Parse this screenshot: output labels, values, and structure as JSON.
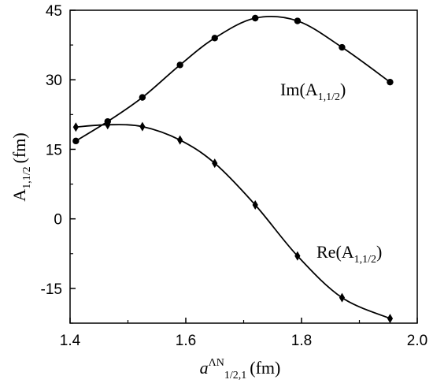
{
  "chart_data": {
    "type": "line",
    "xlabel": {
      "base": "a",
      "sup": "ΛN",
      "sub": "1/2,1",
      "unit": "(fm)"
    },
    "ylabel": {
      "base": "A",
      "sub": "1,1/2",
      "unit": "(fm)"
    },
    "xlim": [
      1.4,
      2.0
    ],
    "ylim": [
      -22.5,
      45
    ],
    "xticks": [
      1.4,
      1.6,
      1.8,
      2.0
    ],
    "xtick_labels": [
      "1.4",
      "1.6",
      "1.8",
      "2.0"
    ],
    "yticks": [
      -15,
      0,
      15,
      30,
      45
    ],
    "ytick_labels": [
      "-15",
      "0",
      "15",
      "30",
      "45"
    ],
    "grid": false,
    "legend": "none",
    "series": [
      {
        "key": "im",
        "label": {
          "base": "Im(A",
          "sub": "1,1/2",
          "tail": ")"
        },
        "marker": "circle",
        "color": "#000000",
        "x": [
          1.41,
          1.465,
          1.525,
          1.59,
          1.65,
          1.72,
          1.793,
          1.87,
          1.953
        ],
        "y": [
          16.8,
          21.0,
          26.2,
          33.2,
          39.0,
          43.3,
          42.7,
          37.0,
          29.5
        ]
      },
      {
        "key": "re",
        "label": {
          "base": "Re(A",
          "sub": "1,1/2",
          "tail": ")"
        },
        "marker": "diamond",
        "color": "#000000",
        "x": [
          1.41,
          1.465,
          1.525,
          1.59,
          1.65,
          1.72,
          1.793,
          1.87,
          1.953
        ],
        "y": [
          19.8,
          20.3,
          19.9,
          17.0,
          12.0,
          3.0,
          -8.0,
          -17.0,
          -21.5
        ]
      }
    ]
  }
}
